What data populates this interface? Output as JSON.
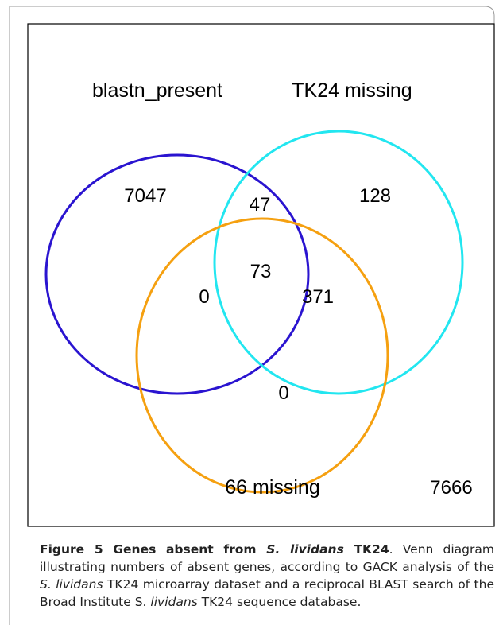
{
  "figure": {
    "set_labels": [
      "blastn_present",
      "TK24 missing",
      "66 missing"
    ],
    "regions": {
      "blastn_only": "7047",
      "blastn_tk24": "47",
      "tk24_only": "128",
      "all_three": "73",
      "blastn_66": "0",
      "tk24_66": "371",
      "66_only": "0",
      "outside": "7666"
    }
  },
  "caption": [
    "Figure 5 Genes absent from ",
    "S. lividans",
    " TK24",
    ". Venn diagram illustrating numbers of absent genes, according to GACK analysis of the ",
    "S. lividans",
    " TK24 microarray dataset and a reciprocal BLAST search of the Broad Institute S. ",
    "lividans",
    " TK24 sequence database."
  ]
}
